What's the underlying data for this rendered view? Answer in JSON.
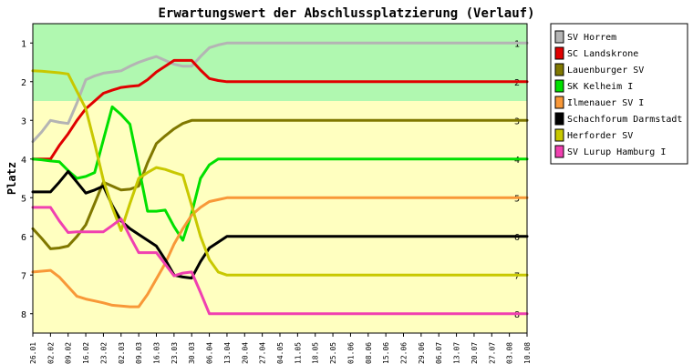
{
  "chart_data": {
    "type": "line",
    "title": "Erwartungswert der Abschlussplatzierung (Verlauf)",
    "ylabel": "Platz",
    "xlabel": "",
    "y_ticks": [
      1,
      2,
      3,
      4,
      5,
      6,
      7,
      8
    ],
    "y_range": [
      0.5,
      8.5
    ],
    "y_inverted": true,
    "promotion_zone": [
      0.5,
      2.5
    ],
    "promotion_zone_color": "#b0f8b0",
    "rest_zone_color": "#ffffc0",
    "categories": [
      "26.01",
      "02.02",
      "09.02",
      "16.02",
      "23.02",
      "02.03",
      "09.03",
      "16.03",
      "23.03",
      "30.03",
      "06.04",
      "13.04",
      "20.04",
      "27.04",
      "04.05",
      "11.05",
      "18.05",
      "25.05",
      "01.06",
      "08.06",
      "15.06",
      "22.06",
      "29.06",
      "06.07",
      "13.07",
      "20.07",
      "27.07",
      "03.08",
      "10.08"
    ],
    "x": [
      0,
      0.5,
      1,
      1.5,
      2,
      2.5,
      3,
      3.5,
      4,
      4.5,
      5,
      5.5,
      6,
      6.5,
      7,
      7.5,
      8,
      8.5,
      9,
      9.5,
      10,
      10.5,
      11,
      11.5,
      12,
      12.5,
      13,
      13.5,
      14,
      14.5,
      15,
      15.5,
      16,
      16.5,
      17,
      17.5,
      18,
      18.5,
      19,
      19.5,
      20,
      20.5,
      21,
      21.5,
      22,
      22.5,
      23,
      23.5,
      24,
      24.5,
      25,
      25.5,
      26,
      26.5,
      27,
      27.5,
      28
    ],
    "series": [
      {
        "name": "SV Horrem",
        "color": "#b4b4b4",
        "values": [
          3.55,
          3.3,
          3.0,
          3.05,
          3.08,
          2.55,
          1.95,
          1.85,
          1.78,
          1.75,
          1.72,
          1.6,
          1.5,
          1.42,
          1.35,
          1.45,
          1.55,
          1.6,
          1.6,
          1.35,
          1.12,
          1.05,
          1.0,
          1.0,
          1.0,
          1.0,
          1.0,
          1.0,
          1.0,
          1.0,
          1.0,
          1.0,
          1.0,
          1.0,
          1.0,
          1.0,
          1.0,
          1.0,
          1.0,
          1.0,
          1.0,
          1.0,
          1.0,
          1.0,
          1.0,
          1.0,
          1.0,
          1.0,
          1.0,
          1.0,
          1.0,
          1.0,
          1.0,
          1.0,
          1.0,
          1.0,
          1.0
        ]
      },
      {
        "name": "SC Landskrone",
        "color": "#e00000",
        "values": [
          4.0,
          4.0,
          4.0,
          3.65,
          3.35,
          3.0,
          2.7,
          2.5,
          2.3,
          2.22,
          2.15,
          2.12,
          2.1,
          1.95,
          1.75,
          1.6,
          1.45,
          1.45,
          1.45,
          1.7,
          1.92,
          1.97,
          2.0,
          2.0,
          2.0,
          2.0,
          2.0,
          2.0,
          2.0,
          2.0,
          2.0,
          2.0,
          2.0,
          2.0,
          2.0,
          2.0,
          2.0,
          2.0,
          2.0,
          2.0,
          2.0,
          2.0,
          2.0,
          2.0,
          2.0,
          2.0,
          2.0,
          2.0,
          2.0,
          2.0,
          2.0,
          2.0,
          2.0,
          2.0,
          2.0,
          2.0,
          2.0
        ]
      },
      {
        "name": "Lauenburger SV",
        "color": "#807800",
        "values": [
          5.8,
          6.05,
          6.32,
          6.3,
          6.25,
          6.0,
          5.7,
          5.15,
          4.6,
          4.7,
          4.8,
          4.78,
          4.7,
          4.1,
          3.6,
          3.4,
          3.22,
          3.08,
          3.0,
          3.0,
          3.0,
          3.0,
          3.0,
          3.0,
          3.0,
          3.0,
          3.0,
          3.0,
          3.0,
          3.0,
          3.0,
          3.0,
          3.0,
          3.0,
          3.0,
          3.0,
          3.0,
          3.0,
          3.0,
          3.0,
          3.0,
          3.0,
          3.0,
          3.0,
          3.0,
          3.0,
          3.0,
          3.0,
          3.0,
          3.0,
          3.0,
          3.0,
          3.0,
          3.0,
          3.0,
          3.0,
          3.0
        ]
      },
      {
        "name": "SK Kelheim I",
        "color": "#00e000",
        "values": [
          4.0,
          4.02,
          4.05,
          4.07,
          4.3,
          4.5,
          4.45,
          4.35,
          3.5,
          2.65,
          2.85,
          3.1,
          4.2,
          5.35,
          5.35,
          5.32,
          5.75,
          6.1,
          5.4,
          4.5,
          4.15,
          4.0,
          4.0,
          4.0,
          4.0,
          4.0,
          4.0,
          4.0,
          4.0,
          4.0,
          4.0,
          4.0,
          4.0,
          4.0,
          4.0,
          4.0,
          4.0,
          4.0,
          4.0,
          4.0,
          4.0,
          4.0,
          4.0,
          4.0,
          4.0,
          4.0,
          4.0,
          4.0,
          4.0,
          4.0,
          4.0,
          4.0,
          4.0,
          4.0,
          4.0,
          4.0,
          4.0
        ]
      },
      {
        "name": "Ilmenauer SV I",
        "color": "#f89838",
        "values": [
          6.92,
          6.9,
          6.88,
          7.05,
          7.3,
          7.55,
          7.62,
          7.67,
          7.72,
          7.78,
          7.8,
          7.82,
          7.82,
          7.5,
          7.1,
          6.7,
          6.2,
          5.8,
          5.45,
          5.25,
          5.1,
          5.05,
          5.0,
          5.0,
          5.0,
          5.0,
          5.0,
          5.0,
          5.0,
          5.0,
          5.0,
          5.0,
          5.0,
          5.0,
          5.0,
          5.0,
          5.0,
          5.0,
          5.0,
          5.0,
          5.0,
          5.0,
          5.0,
          5.0,
          5.0,
          5.0,
          5.0,
          5.0,
          5.0,
          5.0,
          5.0,
          5.0,
          5.0,
          5.0,
          5.0,
          5.0,
          5.0
        ]
      },
      {
        "name": "Schachforum Darmstadt",
        "color": "#000000",
        "values": [
          4.85,
          4.85,
          4.85,
          4.6,
          4.32,
          4.6,
          4.88,
          4.8,
          4.7,
          5.2,
          5.6,
          5.8,
          5.95,
          6.1,
          6.25,
          6.6,
          7.0,
          7.05,
          7.08,
          6.65,
          6.3,
          6.15,
          6.0,
          6.0,
          6.0,
          6.0,
          6.0,
          6.0,
          6.0,
          6.0,
          6.0,
          6.0,
          6.0,
          6.0,
          6.0,
          6.0,
          6.0,
          6.0,
          6.0,
          6.0,
          6.0,
          6.0,
          6.0,
          6.0,
          6.0,
          6.0,
          6.0,
          6.0,
          6.0,
          6.0,
          6.0,
          6.0,
          6.0,
          6.0,
          6.0,
          6.0,
          6.0
        ]
      },
      {
        "name": "Herforder SV",
        "color": "#c8c800",
        "values": [
          1.72,
          1.73,
          1.75,
          1.77,
          1.8,
          2.25,
          2.7,
          3.6,
          4.55,
          5.25,
          5.85,
          5.15,
          4.5,
          4.35,
          4.22,
          4.27,
          4.35,
          4.42,
          5.2,
          6.0,
          6.6,
          6.92,
          7.0,
          7.0,
          7.0,
          7.0,
          7.0,
          7.0,
          7.0,
          7.0,
          7.0,
          7.0,
          7.0,
          7.0,
          7.0,
          7.0,
          7.0,
          7.0,
          7.0,
          7.0,
          7.0,
          7.0,
          7.0,
          7.0,
          7.0,
          7.0,
          7.0,
          7.0,
          7.0,
          7.0,
          7.0,
          7.0,
          7.0,
          7.0,
          7.0,
          7.0,
          7.0
        ]
      },
      {
        "name": "SV Lurup Hamburg I",
        "color": "#f040b0",
        "values": [
          5.25,
          5.25,
          5.25,
          5.6,
          5.9,
          5.88,
          5.88,
          5.88,
          5.88,
          5.72,
          5.55,
          6.0,
          6.42,
          6.42,
          6.42,
          6.72,
          7.02,
          6.95,
          6.92,
          7.45,
          8.0,
          8.0,
          8.0,
          8.0,
          8.0,
          8.0,
          8.0,
          8.0,
          8.0,
          8.0,
          8.0,
          8.0,
          8.0,
          8.0,
          8.0,
          8.0,
          8.0,
          8.0,
          8.0,
          8.0,
          8.0,
          8.0,
          8.0,
          8.0,
          8.0,
          8.0,
          8.0,
          8.0,
          8.0,
          8.0,
          8.0,
          8.0,
          8.0,
          8.0,
          8.0,
          8.0,
          8.0
        ]
      }
    ],
    "legend_position": "right",
    "grid": false
  }
}
